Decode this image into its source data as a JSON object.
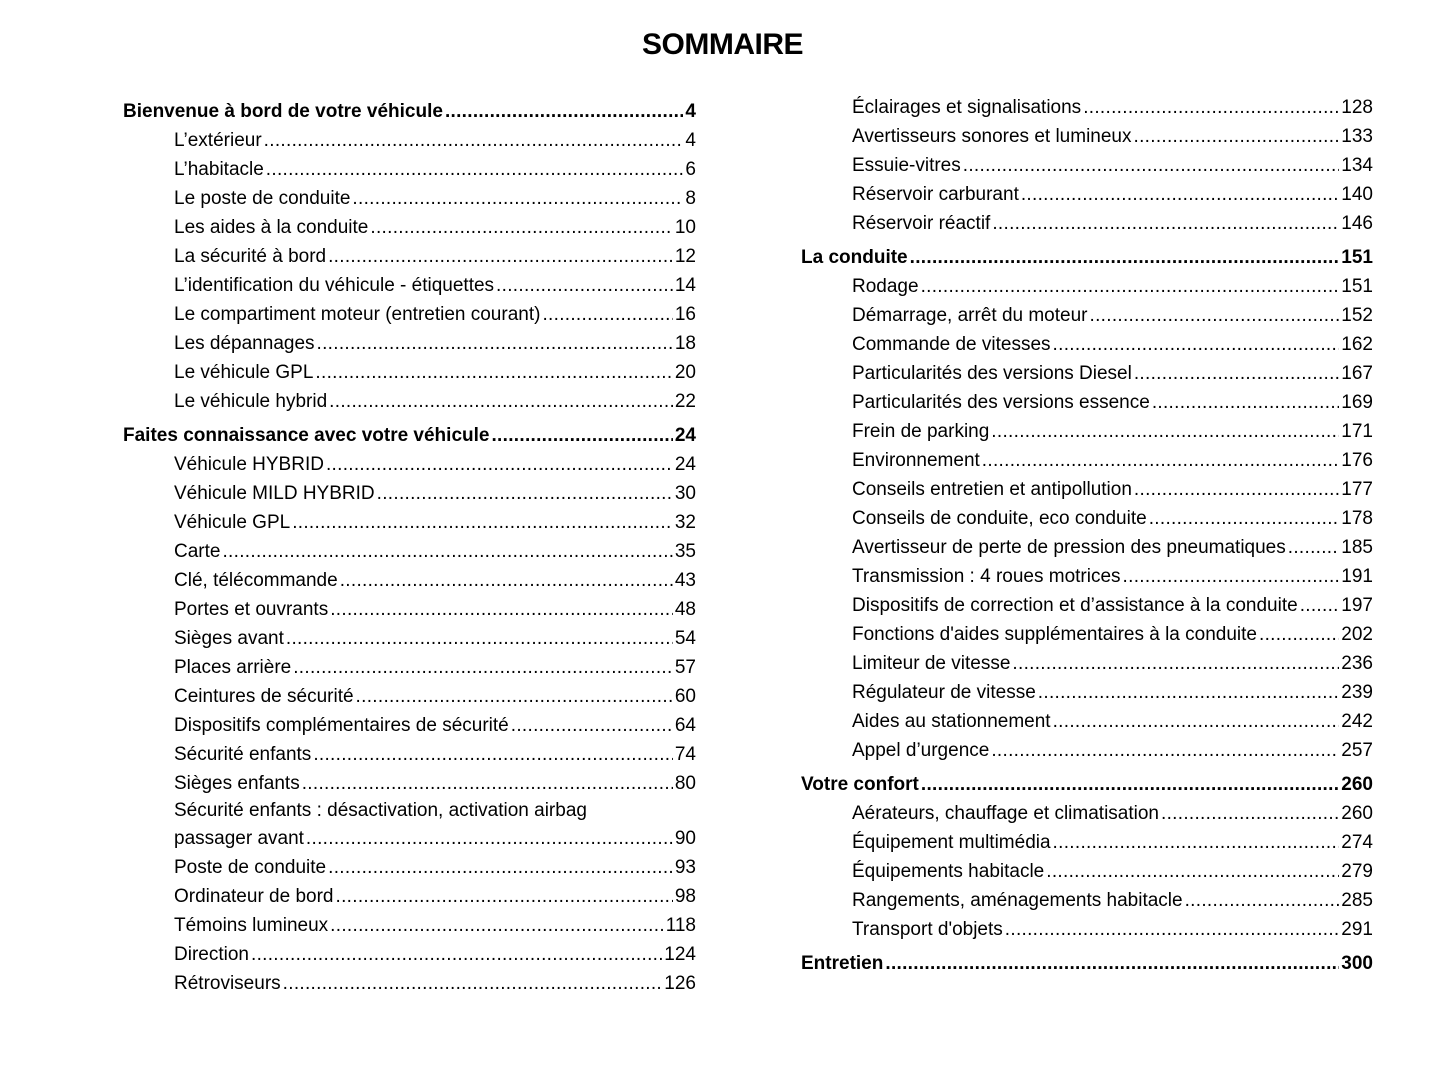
{
  "title": "SOMMAIRE",
  "left": [
    {
      "type": "head",
      "label": "Bienvenue à bord de votre véhicule",
      "page": "4"
    },
    {
      "type": "sub",
      "label": "L’extérieur",
      "page": "4"
    },
    {
      "type": "sub",
      "label": "L’habitacle",
      "page": "6"
    },
    {
      "type": "sub",
      "label": "Le poste de conduite",
      "page": "8"
    },
    {
      "type": "sub",
      "label": "Les aides à la conduite",
      "page": "10"
    },
    {
      "type": "sub",
      "label": "La sécurité à bord",
      "page": "12"
    },
    {
      "type": "sub",
      "label": "L’identification du véhicule - étiquettes",
      "page": "14"
    },
    {
      "type": "sub",
      "label": "Le compartiment moteur (entretien courant)",
      "page": "16"
    },
    {
      "type": "sub",
      "label": "Les dépannages",
      "page": "18"
    },
    {
      "type": "sub",
      "label": "Le véhicule GPL",
      "page": "20"
    },
    {
      "type": "sub",
      "label": "Le véhicule hybrid",
      "page": "22"
    },
    {
      "type": "head",
      "label": "Faites connaissance avec votre véhicule",
      "page": "24"
    },
    {
      "type": "sub",
      "label": "Véhicule HYBRID",
      "page": "24"
    },
    {
      "type": "sub",
      "label": "Véhicule MILD HYBRID",
      "page": "30"
    },
    {
      "type": "sub",
      "label": "Véhicule GPL",
      "page": "32"
    },
    {
      "type": "sub",
      "label": "Carte",
      "page": "35"
    },
    {
      "type": "sub",
      "label": "Clé, télécommande",
      "page": "43"
    },
    {
      "type": "sub",
      "label": "Portes et ouvrants",
      "page": "48"
    },
    {
      "type": "sub",
      "label": "Sièges avant",
      "page": "54"
    },
    {
      "type": "sub",
      "label": "Places arrière",
      "page": "57"
    },
    {
      "type": "sub",
      "label": "Ceintures de sécurité",
      "page": "60"
    },
    {
      "type": "sub",
      "label": "Dispositifs complémentaires de sécurité",
      "page": "64"
    },
    {
      "type": "sub",
      "label": "Sécurité enfants",
      "page": "74"
    },
    {
      "type": "sub",
      "label": "Sièges enfants",
      "page": "80"
    },
    {
      "type": "multi",
      "label": "Sécurité enfants : désactivation, activation airbag",
      "label2": "passager avant",
      "page": "90"
    },
    {
      "type": "sub",
      "label": "Poste de conduite",
      "page": "93"
    },
    {
      "type": "sub",
      "label": "Ordinateur de bord",
      "page": "98"
    },
    {
      "type": "sub",
      "label": "Témoins lumineux",
      "page": "118"
    },
    {
      "type": "sub",
      "label": "Direction",
      "page": "124"
    },
    {
      "type": "sub",
      "label": "Rétroviseurs",
      "page": "126"
    }
  ],
  "right": [
    {
      "type": "sub",
      "label": "Éclairages et signalisations",
      "page": "128"
    },
    {
      "type": "sub",
      "label": "Avertisseurs sonores et lumineux",
      "page": "133"
    },
    {
      "type": "sub",
      "label": "Essuie-vitres",
      "page": "134"
    },
    {
      "type": "sub",
      "label": "Réservoir carburant",
      "page": "140"
    },
    {
      "type": "sub",
      "label": "Réservoir réactif",
      "page": "146"
    },
    {
      "type": "head",
      "label": "La conduite",
      "page": "151"
    },
    {
      "type": "sub",
      "label": "Rodage",
      "page": "151"
    },
    {
      "type": "sub",
      "label": "Démarrage, arrêt du moteur",
      "page": "152"
    },
    {
      "type": "sub",
      "label": "Commande de vitesses",
      "page": "162"
    },
    {
      "type": "sub",
      "label": "Particularités des versions Diesel",
      "page": "167"
    },
    {
      "type": "sub",
      "label": "Particularités des versions essence",
      "page": "169"
    },
    {
      "type": "sub",
      "label": "Frein de parking",
      "page": "171"
    },
    {
      "type": "sub",
      "label": "Environnement",
      "page": "176"
    },
    {
      "type": "sub",
      "label": "Conseils entretien et antipollution",
      "page": "177"
    },
    {
      "type": "sub",
      "label": "Conseils de conduite, eco conduite",
      "page": "178"
    },
    {
      "type": "sub",
      "label": "Avertisseur de perte de pression des pneumatiques",
      "page": "185"
    },
    {
      "type": "sub",
      "label": "Transmission : 4 roues motrices",
      "page": "191"
    },
    {
      "type": "sub",
      "label": "Dispositifs de correction et d’assistance à la conduite",
      "page": "197"
    },
    {
      "type": "sub",
      "label": "Fonctions d'aides supplémentaires à la conduite",
      "page": "202"
    },
    {
      "type": "sub",
      "label": "Limiteur de vitesse",
      "page": "236"
    },
    {
      "type": "sub",
      "label": "Régulateur de vitesse",
      "page": "239"
    },
    {
      "type": "sub",
      "label": "Aides au stationnement",
      "page": "242"
    },
    {
      "type": "sub",
      "label": "Appel d’urgence",
      "page": "257"
    },
    {
      "type": "head",
      "label": "Votre confort",
      "page": "260"
    },
    {
      "type": "sub",
      "label": "Aérateurs, chauffage et climatisation",
      "page": "260"
    },
    {
      "type": "sub",
      "label": "Équipement multimédia",
      "page": "274"
    },
    {
      "type": "sub",
      "label": "Équipements habitacle",
      "page": "279"
    },
    {
      "type": "sub",
      "label": "Rangements, aménagements habitacle",
      "page": "285"
    },
    {
      "type": "sub",
      "label": "Transport d'objets",
      "page": "291"
    },
    {
      "type": "head",
      "label": "Entretien",
      "page": "300"
    }
  ]
}
